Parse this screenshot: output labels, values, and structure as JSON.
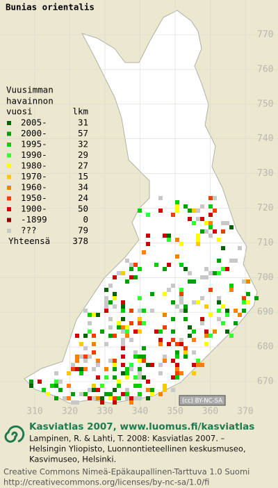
{
  "title": "Bunias orientalis",
  "legend": {
    "heading": [
      "Vuusimman",
      "havainnon"
    ],
    "period_header": "vuosi",
    "count_header": "lkm",
    "rows": [
      {
        "period": "2005-",
        "count": 31,
        "color": "#006400"
      },
      {
        "period": "2000-",
        "count": 57,
        "color": "#00a000"
      },
      {
        "period": "1995-",
        "count": 32,
        "color": "#00d000"
      },
      {
        "period": "1990-",
        "count": 29,
        "color": "#30ff30"
      },
      {
        "period": "1980-",
        "count": 27,
        "color": "#ffff00"
      },
      {
        "period": "1970-",
        "count": 15,
        "color": "#ffc800"
      },
      {
        "period": "1960-",
        "count": 34,
        "color": "#ff8000"
      },
      {
        "period": "1950-",
        "count": 24,
        "color": "#f04000"
      },
      {
        "period": "1900-",
        "count": 50,
        "color": "#d00000"
      },
      {
        "period": "-1899",
        "count": 0,
        "color": "#900000"
      },
      {
        "period": "???",
        "count": 79,
        "color": "#c8c8c8"
      }
    ],
    "total_label": "Yhteensä",
    "total": 378
  },
  "grid": {
    "north": [
      770,
      760,
      750,
      740,
      730,
      720,
      710,
      700,
      690,
      680,
      670
    ],
    "east": [
      310,
      320,
      330,
      340,
      350,
      360,
      370
    ]
  },
  "license_badge": "(cc) BY-NC-SA",
  "footer": {
    "headline": "Kasviatlas 2007, www.luomus.fi/kasviatlas",
    "citation": [
      "Lampinen, R. & Lahti, T. 2008: Kasviatlas 2007. –",
      "Helsingin Yliopisto, Luonnontieteellinen keskusmuseo,",
      "Kasvimuseo, Helsinki."
    ],
    "license": [
      "Creative Commons Nimeä-Epäkaupallinen-Tarttuva 1.0 Suomi",
      "http://creativecommons.org/licenses/by-nc-sa/1.0/fi"
    ]
  }
}
